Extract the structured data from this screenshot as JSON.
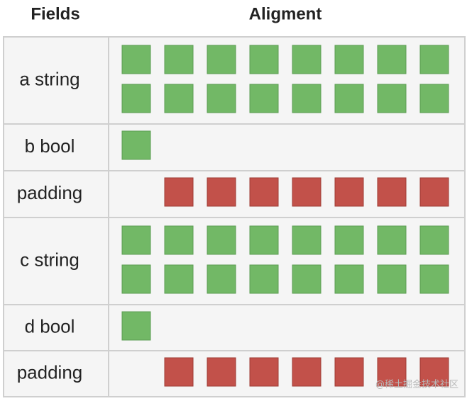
{
  "header": {
    "fields": "Fields",
    "alignment": "Aligment"
  },
  "rows": [
    {
      "field": "a string"
    },
    {
      "field": "b bool"
    },
    {
      "field": "padding"
    },
    {
      "field": "c string"
    },
    {
      "field": "d bool"
    },
    {
      "field": "padding"
    }
  ],
  "watermark": "@稀土掘金技术社区"
}
